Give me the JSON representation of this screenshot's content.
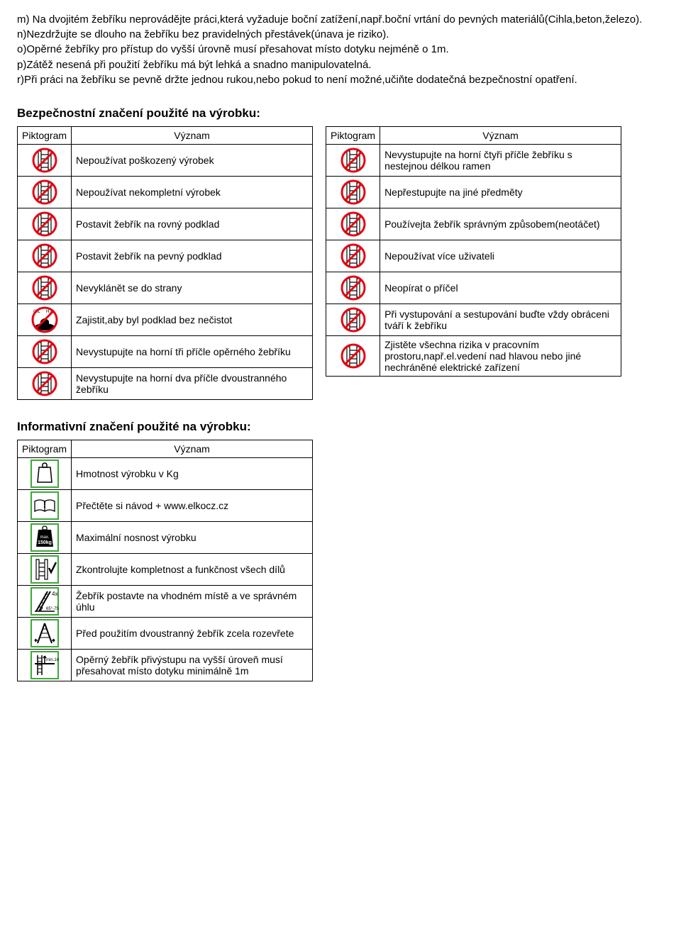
{
  "paragraphs": [
    "m) Na dvojitém žebříku neprovádějte práci,která vyžaduje boční zatížení,např.boční vrtání do pevných materiálů(Cihla,beton,železo).",
    "n)Nezdržujte se dlouho na žebříku bez pravidelných přestávek(únava je riziko).",
    "o)Opěrné žebříky pro přístup do vyšší úrovně musí přesahovat místo dotyku nejméně o 1m.",
    "p)Zátěž nesená při použití žebříku má být lehká a snadno manipulovatelná.",
    "r)Při práci na žebříku se pevně držte jednou rukou,nebo pokud to není možné,učiňte dodatečná bezpečnostní opatření."
  ],
  "safety_heading": "Bezpečnostní značení použité na výrobku:",
  "info_heading": "Informativní značení použité na výrobku:",
  "headers": {
    "col1": "Piktogram",
    "col2": "Význam"
  },
  "safety_left": [
    {
      "icon": "prohibit",
      "text": "Nepoužívat poškozený výrobek"
    },
    {
      "icon": "prohibit",
      "text": "Nepoužívat nekompletní výrobek"
    },
    {
      "icon": "prohibit",
      "text": "Postavit žebřík na rovný podklad"
    },
    {
      "icon": "prohibit",
      "text": "Postavit žebřík na pevný podklad"
    },
    {
      "icon": "prohibit",
      "text": "Nevyklánět se do strany"
    },
    {
      "icon": "oil",
      "text": "Zajistit,aby byl podklad bez nečistot"
    },
    {
      "icon": "prohibit",
      "text": "Nevystupujte na horní tři příčle opěrného žebříku"
    },
    {
      "icon": "prohibit",
      "text": "Nevystupujte na horní dva příčle dvoustranného žebříku"
    }
  ],
  "safety_right": [
    {
      "icon": "prohibit",
      "text": "Nevystupujte na horní čtyři příčle  žebříku s nestejnou délkou ramen"
    },
    {
      "icon": "prohibit",
      "text": "Nepřestupujte na jiné předměty"
    },
    {
      "icon": "prohibit",
      "text": "Používejta žebřík správným způsobem(neotáčet)"
    },
    {
      "icon": "prohibit",
      "text": "Nepoužívat více uživateli"
    },
    {
      "icon": "prohibit",
      "text": "Neopírat o příčel"
    },
    {
      "icon": "prohibit",
      "text": "Při vystupování a sestupování buďte vždy obráceni tváří k žebříku"
    },
    {
      "icon": "prohibit",
      "text": "Zjistěte všechna rizika v pracovním prostoru,např.el.vedení nad hlavou nebo jiné nechráněné elektrické zařízení"
    }
  ],
  "info_rows": [
    {
      "icon": "weight",
      "text": "Hmotnost výrobku v Kg"
    },
    {
      "icon": "book",
      "text": "Přečtěte si návod + www.elkocz.cz"
    },
    {
      "icon": "maxload",
      "text": "Maximální nosnost výrobku"
    },
    {
      "icon": "check",
      "text": "Zkontrolujte kompletnost a funkčnost všech dílů"
    },
    {
      "icon": "angle",
      "text": "Žebřík postavte na vhodném místě a ve správném úhlu"
    },
    {
      "icon": "open",
      "text": "Před použitím dvoustranný žebřík zcela rozevřete"
    },
    {
      "icon": "overhang",
      "text": "Opěrný žebřík přivýstupu na vyšší úroveň musí přesahovat místo dotyku minimálně 1m"
    }
  ],
  "colors": {
    "prohibit_stroke": "#e30613",
    "info_stroke": "#3aaa35",
    "black": "#000000"
  }
}
